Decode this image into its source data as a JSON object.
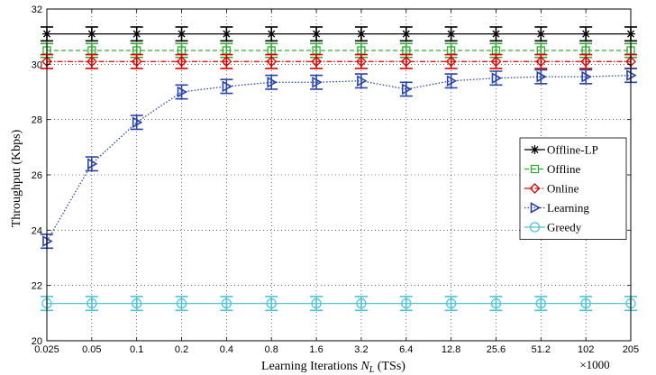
{
  "chart_data": {
    "type": "line",
    "title": "",
    "xlabel": "Learning Iterations N_L (TSs)",
    "xlabel_text": "Learning Iterations ",
    "xlabel_var": "N",
    "xlabel_sub": "L",
    "xlabel_unit": " (TSs)",
    "ylabel": "Throughput (Kbps)",
    "x_multiplier": "×1000",
    "categories": [
      "0.025",
      "0.05",
      "0.1",
      "0.2",
      "0.4",
      "0.8",
      "1.6",
      "3.2",
      "6.4",
      "12.8",
      "25.6",
      "51.2",
      "102",
      "205"
    ],
    "ylim": [
      20,
      32
    ],
    "yticks": [
      20,
      22,
      24,
      26,
      28,
      30,
      32
    ],
    "grid": true,
    "legend_position": "right",
    "series": [
      {
        "name": "Offline-LP",
        "color": "#000000",
        "marker": "star",
        "dash": "",
        "error": 0.25,
        "values": [
          31.1,
          31.1,
          31.1,
          31.1,
          31.1,
          31.1,
          31.1,
          31.1,
          31.1,
          31.1,
          31.1,
          31.1,
          31.1,
          31.1
        ]
      },
      {
        "name": "Offline",
        "color": "#33aa33",
        "marker": "square",
        "dash": "5,3",
        "error": 0.25,
        "values": [
          30.5,
          30.5,
          30.5,
          30.5,
          30.5,
          30.5,
          30.5,
          30.5,
          30.5,
          30.5,
          30.5,
          30.5,
          30.5,
          30.5
        ]
      },
      {
        "name": "Online",
        "color": "#dd0000",
        "marker": "diamond",
        "dash": "6,2,1.5,2",
        "error": 0.25,
        "values": [
          30.1,
          30.1,
          30.1,
          30.1,
          30.1,
          30.1,
          30.1,
          30.1,
          30.1,
          30.1,
          30.1,
          30.1,
          30.1,
          30.1
        ]
      },
      {
        "name": "Learning",
        "color": "#2a45a8",
        "marker": "triangle-right",
        "dash": "1.5,2",
        "error": 0.25,
        "values": [
          23.6,
          26.4,
          27.9,
          29.0,
          29.2,
          29.35,
          29.35,
          29.4,
          29.1,
          29.4,
          29.5,
          29.55,
          29.55,
          29.6
        ]
      },
      {
        "name": "Greedy",
        "color": "#4fc4d4",
        "marker": "circle",
        "dash": "",
        "error": 0.25,
        "values": [
          21.35,
          21.35,
          21.35,
          21.35,
          21.35,
          21.35,
          21.35,
          21.35,
          21.35,
          21.35,
          21.35,
          21.35,
          21.35,
          21.35
        ]
      }
    ]
  }
}
